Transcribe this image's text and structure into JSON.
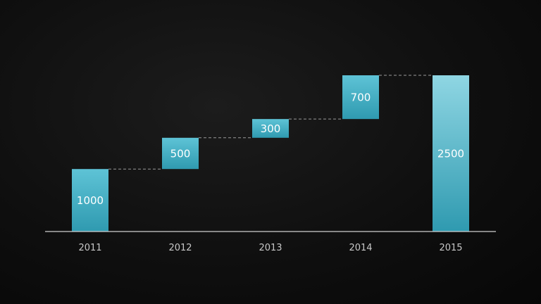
{
  "colors": {
    "bar_top": "#5ec3d6",
    "bar_bottom": "#2f9ab0",
    "total_top": "#8fd6e3",
    "total_bottom": "#2f9ab0"
  },
  "chart_data": {
    "type": "bar",
    "subtype": "waterfall",
    "title": "",
    "xlabel": "",
    "ylabel": "",
    "categories": [
      "2011",
      "2012",
      "2013",
      "2014",
      "2015"
    ],
    "values": [
      1000,
      500,
      300,
      700,
      2500
    ],
    "is_total": [
      false,
      false,
      false,
      false,
      true
    ],
    "labels": [
      "1000",
      "500",
      "300",
      "700",
      "2500"
    ],
    "ylim": [
      0,
      2500
    ],
    "grid": false,
    "legend": "none",
    "connectors": "dashed"
  }
}
